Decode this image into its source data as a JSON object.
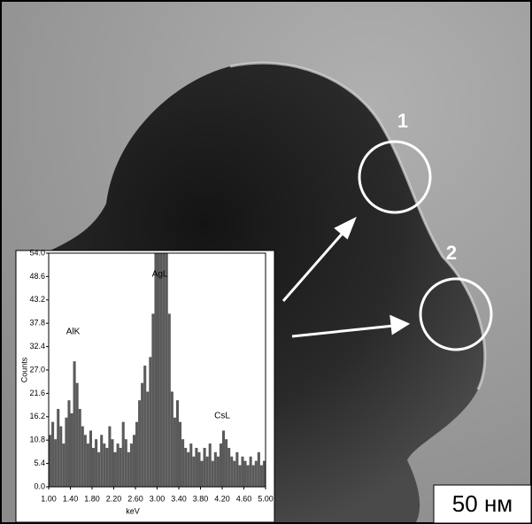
{
  "image": {
    "markers": [
      "1",
      "2"
    ],
    "scale_bar": "50 нм"
  },
  "chart_data": {
    "type": "bar",
    "x_label": "keV",
    "y_label": "Counts",
    "color": "#5a5a5a",
    "annotations": [
      {
        "text": "AlK",
        "x": 1.45
      },
      {
        "text": "AgL",
        "x": 3.05
      },
      {
        "text": "CsL",
        "x": 4.2
      }
    ],
    "x": [
      1.0,
      1.05,
      1.1,
      1.15,
      1.2,
      1.25,
      1.3,
      1.35,
      1.4,
      1.45,
      1.5,
      1.55,
      1.6,
      1.65,
      1.7,
      1.75,
      1.8,
      1.85,
      1.9,
      1.95,
      2.0,
      2.05,
      2.1,
      2.15,
      2.2,
      2.25,
      2.3,
      2.35,
      2.4,
      2.45,
      2.5,
      2.55,
      2.6,
      2.65,
      2.7,
      2.75,
      2.8,
      2.85,
      2.9,
      2.95,
      3.0,
      3.05,
      3.1,
      3.15,
      3.2,
      3.25,
      3.3,
      3.35,
      3.4,
      3.45,
      3.5,
      3.55,
      3.6,
      3.65,
      3.7,
      3.75,
      3.8,
      3.85,
      3.9,
      3.95,
      4.0,
      4.05,
      4.1,
      4.15,
      4.2,
      4.25,
      4.3,
      4.35,
      4.4,
      4.45,
      4.5,
      4.55,
      4.6,
      4.65,
      4.7,
      4.75,
      4.8,
      4.85,
      4.9,
      4.95
    ],
    "values": [
      12,
      15,
      11,
      18,
      14,
      10,
      16,
      20,
      17,
      29,
      24,
      18,
      14,
      12,
      10,
      13,
      9,
      11,
      8,
      12,
      10,
      9,
      14,
      11,
      8,
      10,
      9,
      15,
      11,
      8,
      10,
      12,
      15,
      20,
      24,
      28,
      22,
      30,
      40,
      54,
      54,
      54,
      54,
      54,
      40,
      22,
      16,
      20,
      15,
      11,
      9,
      8,
      10,
      7,
      9,
      8,
      6,
      9,
      7,
      10,
      6,
      8,
      7,
      10,
      13,
      11,
      9,
      7,
      6,
      8,
      5,
      7,
      6,
      5,
      7,
      5,
      6,
      8,
      5,
      6
    ],
    "xlim": [
      1.0,
      5.0
    ],
    "ylim": [
      0,
      54
    ],
    "xticks": [
      {
        "value": 1.0,
        "label": "1.00"
      },
      {
        "value": 1.4,
        "label": "1.40"
      },
      {
        "value": 1.8,
        "label": "1.80"
      },
      {
        "value": 2.2,
        "label": "2.20"
      },
      {
        "value": 2.6,
        "label": "2.60"
      },
      {
        "value": 3.0,
        "label": "3.00"
      },
      {
        "value": 3.4,
        "label": "3.40"
      },
      {
        "value": 3.8,
        "label": "3.80"
      },
      {
        "value": 4.2,
        "label": "4.20"
      },
      {
        "value": 4.6,
        "label": "4.60"
      },
      {
        "value": 5.0,
        "label": "5.00"
      }
    ],
    "yticks": [
      {
        "value": 0,
        "label": "0.0"
      },
      5.4,
      10.8,
      16.2,
      21.6,
      {
        "value": 27,
        "label": "27.0"
      },
      32.4,
      37.8,
      43.2,
      48.6,
      {
        "value": 54,
        "label": "54.0"
      }
    ]
  }
}
